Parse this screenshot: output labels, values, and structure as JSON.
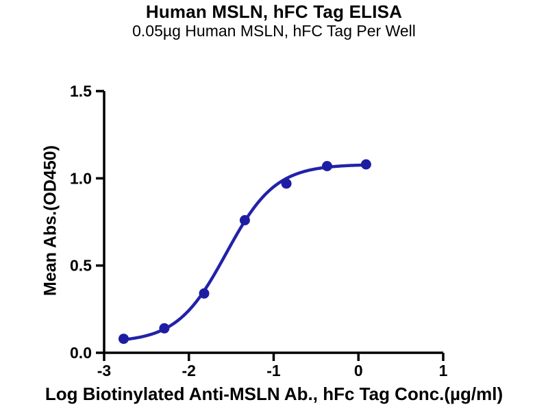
{
  "title": "Human MSLN, hFC Tag ELISA",
  "subtitle": "0.05µg Human MSLN, hFC Tag Per Well",
  "chart_data": {
    "type": "scatter",
    "title": "Human MSLN, hFC Tag ELISA",
    "subtitle": "0.05µg Human MSLN, hFC Tag Per Well",
    "xlabel": "Log Biotinylated Anti-MSLN Ab., hFc Tag Conc.(µg/ml)",
    "ylabel": "Mean Abs.(OD450)",
    "xlim": [
      -3,
      1
    ],
    "ylim": [
      0,
      1.5
    ],
    "x_ticks": [
      {
        "value": -3,
        "label": "-3"
      },
      {
        "value": -2,
        "label": "-2"
      },
      {
        "value": -1,
        "label": "-1"
      },
      {
        "value": 0,
        "label": "0"
      },
      {
        "value": 1,
        "label": "1"
      }
    ],
    "y_ticks": [
      {
        "value": 0.0,
        "label": "0.0"
      },
      {
        "value": 0.5,
        "label": "0.5"
      },
      {
        "value": 1.0,
        "label": "1.0"
      },
      {
        "value": 1.5,
        "label": "1.5"
      }
    ],
    "grid": false,
    "legend": "none",
    "axis_color": "#000000",
    "series": [
      {
        "name": "Biotinylated Anti-MSLN Ab., hFc Tag",
        "line_color": "#2222aa",
        "marker_color": "#1d1da4",
        "marker": "circle",
        "points": [
          {
            "x": -2.77,
            "y": 0.08
          },
          {
            "x": -2.29,
            "y": 0.14
          },
          {
            "x": -1.82,
            "y": 0.34
          },
          {
            "x": -1.34,
            "y": 0.76
          },
          {
            "x": -0.85,
            "y": 0.97
          },
          {
            "x": -0.37,
            "y": 1.07
          },
          {
            "x": 0.09,
            "y": 1.08
          }
        ],
        "fit_curve": {
          "model": "4PL-sigmoid",
          "bottom": 0.06,
          "top": 1.08,
          "logEC50": -1.56,
          "hillslope": 1.5
        }
      }
    ]
  }
}
